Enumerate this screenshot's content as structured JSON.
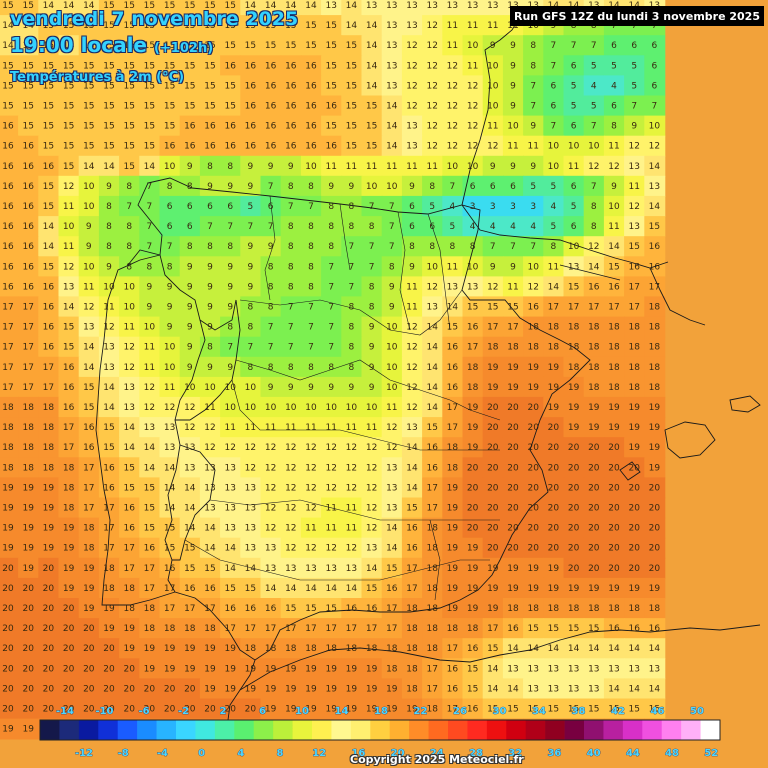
{
  "header": {
    "date_line": "vendredi 7 novembre 2025",
    "time_line": "19:00 locale",
    "time_offset": "(+102h)",
    "variable": "Températures à 2m (°C)",
    "run_info": "Run GFS 12Z du lundi 3 novembre 2025"
  },
  "footer": {
    "copyright": "Copyright 2025 Meteociel.fr"
  },
  "legend": {
    "top_ticks": [
      "-14",
      "-10",
      "-6",
      "-2",
      "2",
      "6",
      "10",
      "14",
      "18",
      "22",
      "26",
      "30",
      "34",
      "38",
      "42",
      "46",
      "50"
    ],
    "bottom_ticks": [
      "-12",
      "-8",
      "-4",
      "0",
      "4",
      "8",
      "12",
      "16",
      "20",
      "24",
      "28",
      "32",
      "36",
      "40",
      "44",
      "48",
      "52"
    ],
    "colors": [
      "#14184a",
      "#1c2a7a",
      "#0a1aa0",
      "#1030d8",
      "#1a5cff",
      "#1a8cff",
      "#28b4ff",
      "#3ad6ff",
      "#40e8e0",
      "#4cf0a8",
      "#5af070",
      "#8cf04a",
      "#bcf03a",
      "#e8f43c",
      "#fff050",
      "#fff890",
      "#fff070",
      "#ffd040",
      "#ffb030",
      "#ff8c28",
      "#ff6a20",
      "#ff4a20",
      "#ff2a20",
      "#ee1010",
      "#d00010",
      "#b00018",
      "#900020",
      "#780040",
      "#901070",
      "#b820a0",
      "#d830c8",
      "#f050e0",
      "#ff80f0",
      "#ffb0f8",
      "#ffffff"
    ]
  },
  "temperature_grid": {
    "rows": [
      "15 15 14 14 14 15 15 15 15 15 15 15 14 14 14 14 13 14 13 13 13 13 13 13 13 13 13 14 14 13 14 14 13",
      "14 14 15 15 15 15 15 15 15 15 15 15 15 15 15 15 15 14 14 13 13 12 11 11 11 11 10 9 8 8 7 7 7",
      "14 14 15 14 15 15 15 15 15 15 15 15 15 15 15 15 15 15 14 13 12 12 11 10 9 9 8 7 7 7 6 6 6",
      "15 15 15 15 15 15 15 15 15 15 15 16 16 16 16 16 15 15 14 13 12 12 12 11 10 9 8 7 6 5 5 5 6",
      "15 15 15 15 15 15 15 15 15 15 15 15 16 16 16 16 15 15 14 13 12 12 12 12 10 9 7 6 5 4 4 5 6",
      "15 15 15 15 15 15 15 15 15 15 15 15 16 16 16 16 16 15 15 14 12 12 12 12 10 9 7 6 5 5 6 7 7",
      "16 15 15 15 15 15 15 15 15 16 16 16 16 16 16 16 15 15 15 14 13 12 12 12 11 10 9 7 6 7 8 9 10",
      "16 16 15 15 15 15 15 15 16 16 16 16 16 16 16 16 16 15 15 14 13 12 12 12 12 11 11 10 10 10 11 12 12",
      "16 16 16 15 14 14 15 14 10 9 8 8 9 9 9 10 11 11 11 11 11 11 10 10 9 9 9 10 11 12 12 13 14",
      "16 16 15 12 10 9 8 7 8 8 9 9 9 7 8 8 9 9 10 10 9 8 7 6 6 6 5 5 6 7 9 11 13",
      "16 16 15 11 10 8 7 7 6 6 6 6 5 6 7 7 8 8 7 7 6 5 4 3 3 3 3 4 5 8 10 12 14",
      "16 16 14 10 9 8 8 7 6 6 7 7 7 7 8 8 8 8 8 7 6 6 5 4 4 4 4 5 6 8 11 13 15",
      "16 16 14 11 9 8 8 7 7 8 8 8 9 9 8 8 8 7 7 7 8 8 8 8 7 7 7 8 10 12 14 15 16",
      "16 16 15 12 10 9 8 8 8 9 9 9 9 8 8 8 7 7 7 8 9 10 11 10 9 9 10 11 13 14 15 16 16",
      "16 16 16 13 11 10 10 9 9 9 9 9 9 8 8 8 7 7 8 9 11 12 13 13 12 11 12 14 15 16 16 17 17",
      "17 17 16 14 12 11 10 9 9 9 9 9 8 8 7 7 7 8 8 9 11 13 14 15 15 15 16 17 17 17 17 17 18",
      "17 17 16 15 13 12 11 10 9 9 9 8 8 7 7 7 7 8 9 10 12 14 15 16 17 17 18 18 18 18 18 18 18",
      "17 17 16 15 14 13 12 11 10 9 8 7 7 7 7 7 7 8 9 10 12 14 16 17 18 18 18 18 18 18 18 18 18",
      "17 17 17 16 14 13 12 11 10 9 9 9 8 8 8 8 8 8 9 10 12 14 16 18 19 19 19 19 18 18 18 18 18",
      "17 17 17 16 15 14 13 12 11 10 10 10 10 9 9 9 9 9 9 10 12 14 16 18 19 19 19 19 19 18 18 18 18",
      "18 18 18 16 15 14 13 12 12 12 11 10 10 10 10 10 10 10 10 11 12 14 17 19 20 20 20 19 19 19 19 19 19",
      "18 18 18 17 16 15 14 13 13 12 12 11 11 11 11 11 11 11 11 12 13 15 17 19 20 20 20 20 19 19 19 19 19",
      "18 18 18 17 16 15 14 14 13 13 12 12 12 12 12 12 12 12 12 12 14 16 18 19 20 20 20 20 20 20 20 19 19",
      "18 18 18 18 17 16 15 14 14 13 13 13 12 12 12 12 12 12 12 13 14 16 18 20 20 20 20 20 20 20 20 20 19",
      "19 19 19 18 17 16 15 15 14 14 13 13 13 12 12 12 12 12 12 13 14 17 19 20 20 20 20 20 20 20 20 20 20",
      "19 19 19 18 17 17 16 15 14 14 13 13 13 12 12 12 11 11 12 13 15 17 19 20 20 20 20 20 20 20 20 20 20",
      "19 19 19 19 18 17 16 15 15 14 14 13 13 12 12 11 11 11 12 14 16 18 19 20 20 20 20 20 20 20 20 20 20",
      "19 19 19 19 18 17 17 16 15 15 14 14 13 13 12 12 12 12 13 14 16 18 19 19 20 20 20 20 20 20 20 20 20",
      "20 19 20 19 19 18 17 17 16 15 15 14 14 13 13 13 13 13 14 15 17 18 19 19 19 19 19 19 20 20 20 20 20",
      "20 20 20 19 19 18 18 17 17 16 16 15 15 14 14 14 14 14 15 16 17 18 19 19 19 19 19 19 19 19 19 19 19",
      "20 20 20 20 19 19 18 18 17 17 17 16 16 16 15 15 15 16 16 17 18 18 19 19 19 18 18 18 18 18 18 18 18",
      "20 20 20 20 20 19 19 18 18 18 18 17 17 17 17 17 17 17 17 17 18 18 18 18 17 16 15 15 15 15 16 16 16",
      "20 20 20 20 20 20 19 19 19 19 19 19 18 18 18 18 18 18 18 18 18 18 17 16 15 14 14 14 14 14 14 14 14",
      "20 20 20 20 20 20 20 19 19 19 19 19 19 19 19 19 19 19 19 18 18 17 16 15 14 13 13 13 13 13 13 13 13",
      "20 20 20 20 20 20 20 20 20 20 19 19 19 19 19 19 19 19 19 19 18 17 16 15 14 14 13 13 13 13 14 14 14",
      "20 20 20 20 20 20 20 20 20 20 20 20 20 19 19 19 19 19 19 19 19 18 17 16 15 15 15 15 15 15 15 15 15",
      "19 19 19 19 19 19 19 19 19 19 19 19 19 19 19 19 19 19 19 19 19 19 18 18 18 18 18 18 18 18 18 18 18"
    ]
  }
}
